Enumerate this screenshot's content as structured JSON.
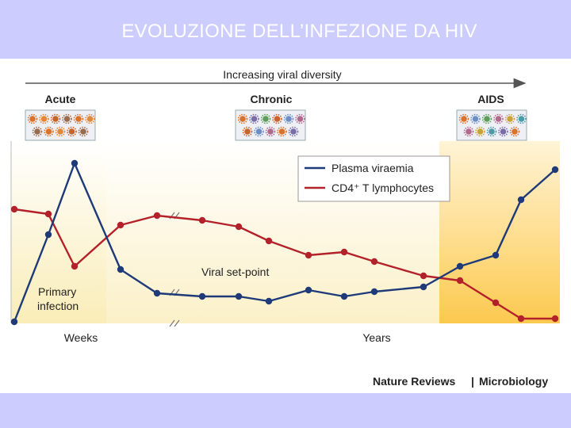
{
  "slide": {
    "title": "EVOLUZIONE DELL’INFEZIONE DA HIV",
    "header_color": "#ccccff"
  },
  "figure": {
    "diversity_label": "Increasing viral diversity",
    "stages": [
      "Acute",
      "Chronic",
      "AIDS"
    ],
    "annotations": {
      "primary_infection": [
        "Primary",
        "infection"
      ],
      "set_point": "Viral set-point"
    },
    "credit": {
      "publisher": "Nature Reviews",
      "separator": "|",
      "journal": "Microbiology"
    },
    "colors": {
      "viraemia": "#1f3a78",
      "cd4": "#b3222b",
      "acute_zone": "#fbf1c6",
      "aids_zone": "#fcd36a"
    }
  },
  "chart_data": {
    "type": "line",
    "xlabel_segments": [
      "Weeks",
      "Years"
    ],
    "grid": false,
    "legend_position": "top-right",
    "x": [
      0,
      1,
      2,
      3,
      4,
      5,
      6,
      7,
      8,
      9,
      10,
      11,
      12,
      13,
      14,
      15
    ],
    "series": [
      {
        "name": "Plasma viraemia",
        "color": "#1f3a78",
        "values": [
          0.0,
          0.55,
          1.0,
          0.33,
          0.18,
          0.16,
          0.16,
          0.13,
          0.2,
          0.16,
          0.19,
          0.22,
          0.35,
          0.42,
          0.77,
          0.96
        ]
      },
      {
        "name": "CD4⁺ T lymphocytes",
        "color": "#b3222b",
        "values": [
          0.71,
          0.68,
          0.35,
          0.61,
          0.67,
          0.64,
          0.6,
          0.51,
          0.42,
          0.44,
          0.38,
          0.29,
          0.26,
          0.12,
          0.02,
          0.02
        ]
      }
    ]
  }
}
